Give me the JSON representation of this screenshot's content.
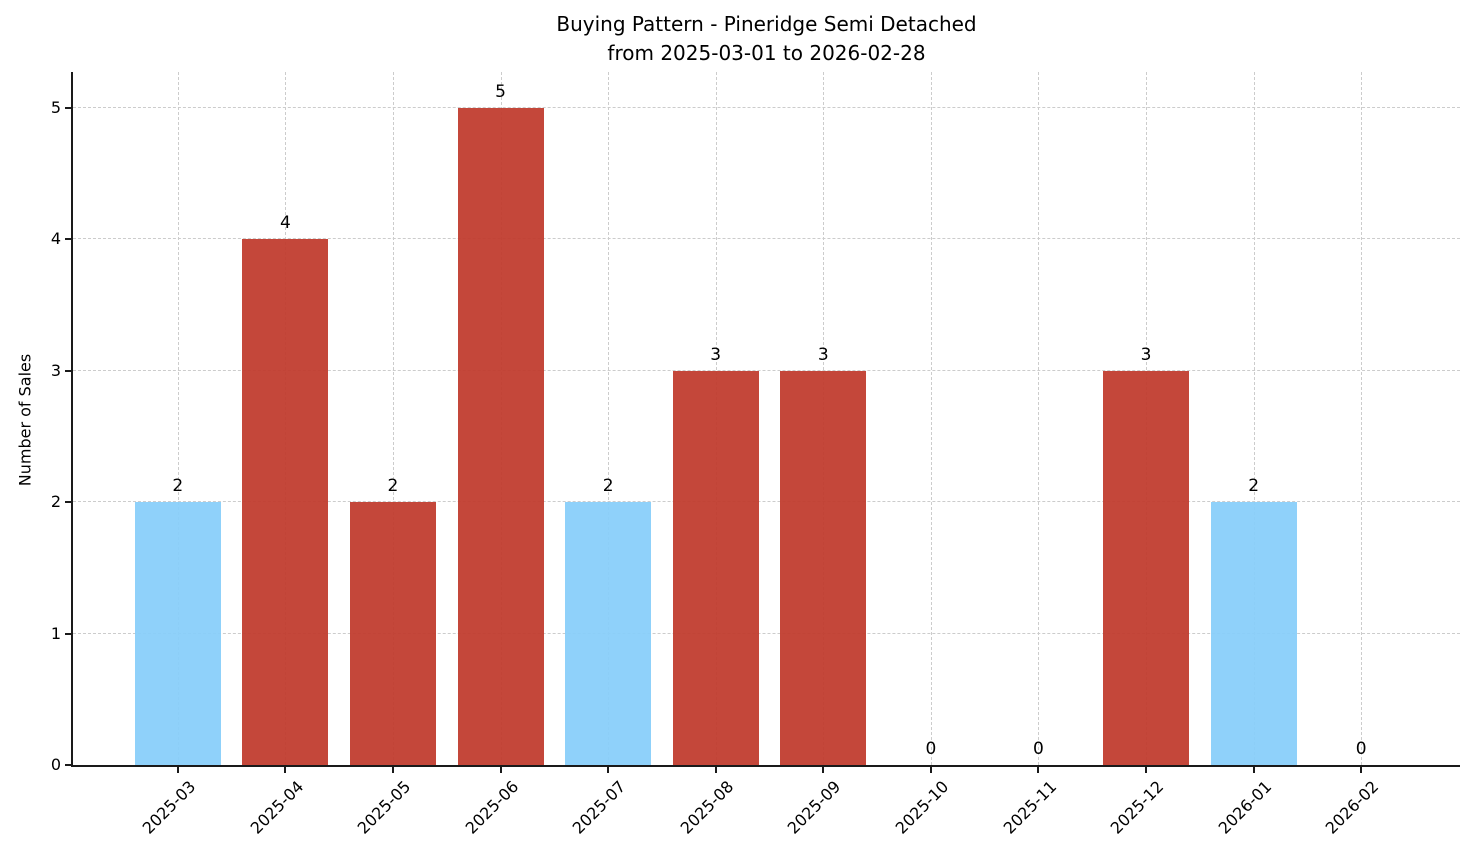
{
  "figure": {
    "title_line1": "Buying Pattern - Pineridge Semi Detached",
    "title_line2": "from 2025-03-01 to 2026-02-28",
    "ylabel": "Number of Sales"
  },
  "chart_data": {
    "type": "bar",
    "title": "Buying Pattern - Pineridge Semi Detached\nfrom 2025-03-01 to 2026-02-28",
    "xlabel": "",
    "ylabel": "Number of Sales",
    "categories": [
      "2025-03",
      "2025-04",
      "2025-05",
      "2025-06",
      "2025-07",
      "2025-08",
      "2025-09",
      "2025-10",
      "2025-11",
      "2025-12",
      "2026-01",
      "2026-02"
    ],
    "values": [
      2,
      4,
      2,
      5,
      2,
      3,
      3,
      0,
      0,
      3,
      2,
      0
    ],
    "bar_colors": [
      "#87CEFA",
      "#C0392B",
      "#C0392B",
      "#C0392B",
      "#87CEFA",
      "#C0392B",
      "#C0392B",
      "#C0392B",
      "#C0392B",
      "#C0392B",
      "#87CEFA",
      "#C0392B"
    ],
    "value_label_on_bars": true,
    "yticks": [
      0,
      1,
      2,
      3,
      4,
      5
    ],
    "ylim": [
      0,
      5.27
    ],
    "grid": true,
    "grid_style": "dashed",
    "legend": "none",
    "colors": {
      "highlight_bar": "#C0392B",
      "regular_bar": "#87CEFA",
      "grid": "#cccccc",
      "axis": "#1a1a1a",
      "text": "#000000",
      "background": "#ffffff"
    }
  }
}
